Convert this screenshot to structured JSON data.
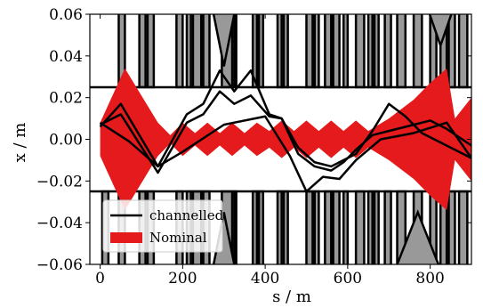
{
  "chart_data": {
    "type": "line",
    "xlabel": "s / m",
    "ylabel": "x / m",
    "xlim": [
      -25,
      900
    ],
    "ylim": [
      -0.06,
      0.06
    ],
    "xticks": [
      "0",
      "200",
      "400",
      "600",
      "800"
    ],
    "yticks": [
      "−0.06",
      "−0.04",
      "−0.02",
      "0.00",
      "0.02",
      "0.04",
      "0.06"
    ],
    "grid": false,
    "legend": {
      "placement": "lower-left",
      "entries": [
        {
          "label": "channelled",
          "color": "#000000",
          "kind": "line"
        },
        {
          "label": "Nominal",
          "color": "#e41a1c",
          "kind": "band"
        }
      ]
    },
    "colors": {
      "nominal": "#e41a1c",
      "line": "#000000",
      "aperture": "#999999"
    },
    "nominal_envelope": {
      "x": [
        0,
        60,
        140,
        170,
        200,
        230,
        260,
        290,
        320,
        350,
        380,
        410,
        440,
        470,
        500,
        530,
        560,
        590,
        620,
        650,
        700,
        760,
        800,
        840,
        860,
        900
      ],
      "upper": [
        0.008,
        0.034,
        0.008,
        0.002,
        0.008,
        0.003,
        0.008,
        0.003,
        0.008,
        0.003,
        0.008,
        0.004,
        0.009,
        0.004,
        0.009,
        0.004,
        0.009,
        0.004,
        0.009,
        0.004,
        0.01,
        0.019,
        0.027,
        0.034,
        0.01,
        0.02
      ]
    },
    "series": [
      {
        "x": [
          0,
          50,
          140,
          210,
          250,
          290,
          325,
          365,
          410,
          440,
          480,
          520,
          560,
          590,
          620,
          660,
          700,
          740,
          780,
          900
        ],
        "y": [
          0.006,
          0.017,
          -0.013,
          0.012,
          0.017,
          0.033,
          0.023,
          0.033,
          0.012,
          0.01,
          -0.004,
          -0.011,
          -0.013,
          -0.01,
          -0.007,
          0.004,
          0.017,
          0.011,
          0.003,
          -0.009
        ]
      },
      {
        "x": [
          0,
          50,
          140,
          210,
          250,
          290,
          325,
          365,
          410,
          440,
          480,
          520,
          560,
          590,
          620,
          660,
          700,
          760,
          800,
          840,
          900
        ],
        "y": [
          0.007,
          0.012,
          -0.016,
          0.008,
          0.012,
          0.023,
          0.017,
          0.021,
          0.011,
          0.01,
          -0.007,
          -0.013,
          -0.015,
          -0.011,
          -0.005,
          0.002,
          0.004,
          0.007,
          0.009,
          0.005,
          -0.003
        ]
      },
      {
        "x": [
          0,
          70,
          140,
          200,
          300,
          400,
          460,
          500,
          540,
          580,
          620,
          680,
          760,
          840,
          900
        ],
        "y": [
          0.008,
          -0.001,
          -0.013,
          -0.006,
          0.007,
          0.011,
          -0.008,
          -0.025,
          -0.018,
          -0.019,
          -0.01,
          0.0,
          0.003,
          0.008,
          -0.009
        ]
      }
    ],
    "apertures_top": [
      [
        45,
        60,
        0.025
      ],
      [
        95,
        110,
        0.025
      ],
      [
        115,
        130,
        0.025
      ],
      [
        185,
        200,
        0.025
      ],
      [
        210,
        220,
        0.025
      ],
      [
        225,
        245,
        0.025
      ],
      [
        250,
        265,
        0.025
      ],
      [
        295,
        320,
        0.025
      ],
      [
        325,
        330,
        0.025
      ],
      [
        370,
        380,
        0.025
      ],
      [
        385,
        395,
        0.025
      ],
      [
        430,
        440,
        0.025
      ],
      [
        445,
        455,
        0.025
      ],
      [
        500,
        515,
        0.025
      ],
      [
        520,
        530,
        0.025
      ],
      [
        545,
        560,
        0.025
      ],
      [
        565,
        580,
        0.025
      ],
      [
        590,
        600,
        0.025
      ],
      [
        620,
        640,
        0.025
      ],
      [
        650,
        660,
        0.025
      ],
      [
        665,
        675,
        0.025
      ],
      [
        690,
        705,
        0.025
      ],
      [
        720,
        740,
        0.025
      ],
      [
        760,
        780,
        0.025
      ],
      [
        800,
        815,
        0.025
      ],
      [
        825,
        840,
        0.025
      ],
      [
        845,
        860,
        0.025
      ],
      [
        870,
        890,
        0.025
      ]
    ],
    "apertures_bottom": [
      [
        5,
        20,
        -0.025
      ],
      [
        45,
        60,
        -0.025
      ],
      [
        95,
        110,
        -0.025
      ],
      [
        115,
        130,
        -0.025
      ],
      [
        185,
        200,
        -0.025
      ],
      [
        210,
        220,
        -0.025
      ],
      [
        225,
        245,
        -0.025
      ],
      [
        250,
        265,
        -0.025
      ],
      [
        295,
        320,
        -0.025
      ],
      [
        325,
        330,
        -0.025
      ],
      [
        370,
        380,
        -0.025
      ],
      [
        385,
        395,
        -0.025
      ],
      [
        430,
        440,
        -0.025
      ],
      [
        445,
        455,
        -0.025
      ],
      [
        500,
        515,
        -0.025
      ],
      [
        520,
        530,
        -0.025
      ],
      [
        545,
        560,
        -0.025
      ],
      [
        565,
        580,
        -0.025
      ],
      [
        590,
        600,
        -0.025
      ],
      [
        620,
        640,
        -0.025
      ],
      [
        650,
        660,
        -0.025
      ],
      [
        665,
        675,
        -0.025
      ],
      [
        690,
        705,
        -0.025
      ],
      [
        720,
        740,
        -0.025
      ],
      [
        760,
        780,
        -0.025
      ],
      [
        800,
        815,
        -0.025
      ],
      [
        825,
        840,
        -0.025
      ],
      [
        845,
        860,
        -0.025
      ],
      [
        870,
        890,
        -0.025
      ]
    ]
  }
}
